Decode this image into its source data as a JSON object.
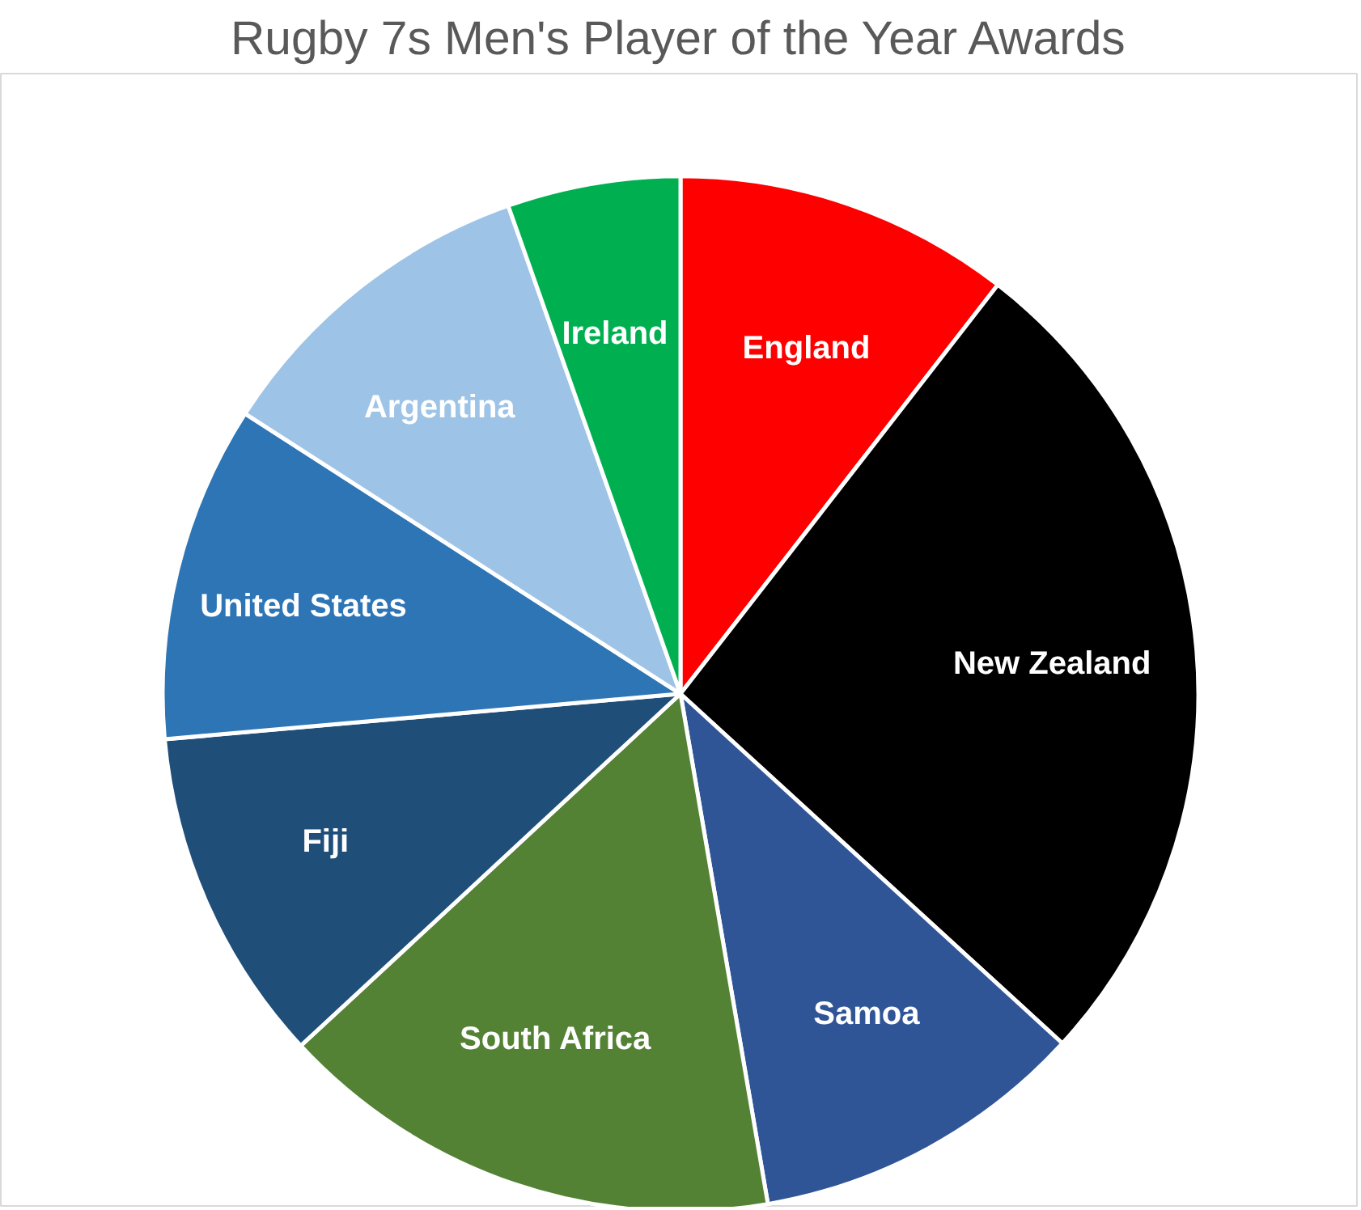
{
  "chart_data": {
    "type": "pie",
    "title": "Rugby 7s Men's Player of the Year Awards",
    "categories": [
      "England",
      "New Zealand",
      "Samoa",
      "South Africa",
      "Fiji",
      "United States",
      "Argentina",
      "Ireland"
    ],
    "values": [
      10.5,
      26.3,
      10.5,
      15.8,
      10.5,
      10.5,
      10.5,
      5.4
    ],
    "colors": [
      "#ff0000",
      "#000000",
      "#2f5597",
      "#548235",
      "#1f4e79",
      "#2e75b6",
      "#9dc3e6",
      "#00b050"
    ],
    "legend": false
  }
}
